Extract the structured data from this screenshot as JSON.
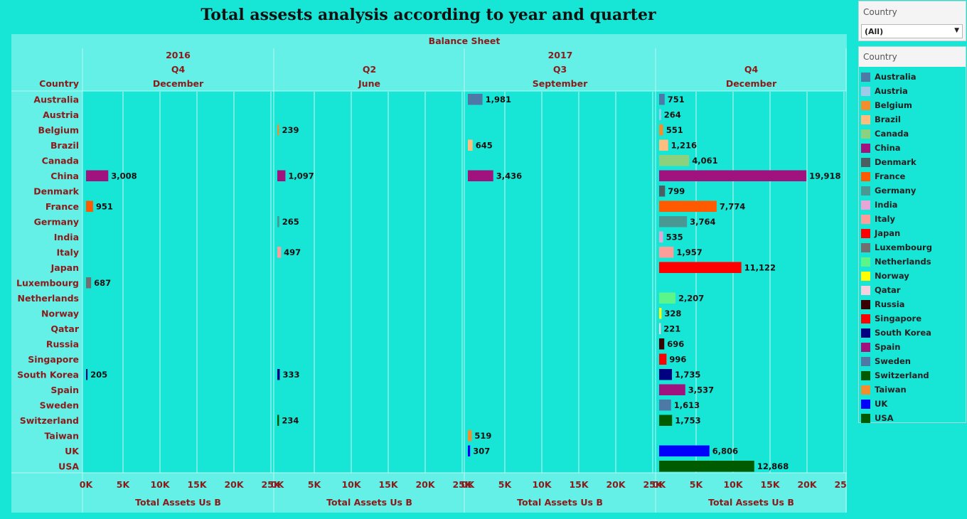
{
  "title": "Total assests analysis according to year and quarter",
  "filter": {
    "title": "Country",
    "selected": "(All)"
  },
  "legend": {
    "title": "Country",
    "items": [
      {
        "label": "Australia",
        "color": "#4e79a7"
      },
      {
        "label": "Austria",
        "color": "#a0cbe8"
      },
      {
        "label": "Belgium",
        "color": "#f28e2b"
      },
      {
        "label": "Brazil",
        "color": "#ffbe7d"
      },
      {
        "label": "Canada",
        "color": "#8cd17d"
      },
      {
        "label": "China",
        "color": "#a0127e"
      },
      {
        "label": "Denmark",
        "color": "#4b5f62"
      },
      {
        "label": "France",
        "color": "#ff5a00"
      },
      {
        "label": "Germany",
        "color": "#499894"
      },
      {
        "label": "India",
        "color": "#e8a6d8"
      },
      {
        "label": "Italy",
        "color": "#ff9d9a"
      },
      {
        "label": "Japan",
        "color": "#ff0000"
      },
      {
        "label": "Luxembourg",
        "color": "#707070"
      },
      {
        "label": "Netherlands",
        "color": "#5cf58a"
      },
      {
        "label": "Norway",
        "color": "#ffff00"
      },
      {
        "label": "Qatar",
        "color": "#f5d0df"
      },
      {
        "label": "Russia",
        "color": "#3d0000"
      },
      {
        "label": "Singapore",
        "color": "#ff0000"
      },
      {
        "label": "South Korea",
        "color": "#000080"
      },
      {
        "label": "Spain",
        "color": "#a0127e"
      },
      {
        "label": "Sweden",
        "color": "#4e79a7"
      },
      {
        "label": "Switzerland",
        "color": "#005a00"
      },
      {
        "label": "Taiwan",
        "color": "#f28e2b"
      },
      {
        "label": "UK",
        "color": "#0000ff"
      },
      {
        "label": "USA",
        "color": "#005a00"
      }
    ]
  },
  "chart_data": {
    "type": "bar",
    "orientation": "horizontal",
    "super_header": "Balance Sheet",
    "row_header": "Country",
    "categories": [
      "Australia",
      "Austria",
      "Belgium",
      "Brazil",
      "Canada",
      "China",
      "Denmark",
      "France",
      "Germany",
      "India",
      "Italy",
      "Japan",
      "Luxembourg",
      "Netherlands",
      "Norway",
      "Qatar",
      "Russia",
      "Singapore",
      "South Korea",
      "Spain",
      "Sweden",
      "Switzerland",
      "Taiwan",
      "UK",
      "USA"
    ],
    "years": [
      {
        "label": "2016",
        "span": 1
      },
      {
        "label": "2017",
        "span": 3
      }
    ],
    "panels": [
      {
        "year": "2016",
        "quarter": "Q4",
        "month": "December",
        "values": [
          null,
          null,
          null,
          null,
          null,
          3008,
          null,
          951,
          null,
          null,
          null,
          null,
          687,
          null,
          null,
          null,
          null,
          null,
          205,
          null,
          null,
          null,
          null,
          null,
          null
        ],
        "labels": [
          null,
          null,
          null,
          null,
          null,
          "3,008",
          null,
          "951",
          null,
          null,
          null,
          null,
          "687",
          null,
          null,
          null,
          null,
          null,
          "205",
          null,
          null,
          null,
          null,
          null,
          null
        ]
      },
      {
        "year": "2017",
        "quarter": "Q2",
        "month": "June",
        "values": [
          null,
          null,
          239,
          null,
          null,
          1097,
          null,
          null,
          265,
          null,
          497,
          null,
          null,
          null,
          null,
          null,
          null,
          null,
          333,
          null,
          null,
          234,
          null,
          null,
          null
        ],
        "labels": [
          null,
          null,
          "239",
          null,
          null,
          "1,097",
          null,
          null,
          "265",
          null,
          "497",
          null,
          null,
          null,
          null,
          null,
          null,
          null,
          "333",
          null,
          null,
          "234",
          null,
          null,
          null
        ]
      },
      {
        "year": "2017",
        "quarter": "Q3",
        "month": "September",
        "values": [
          1981,
          null,
          null,
          645,
          null,
          3436,
          null,
          null,
          null,
          null,
          null,
          null,
          null,
          null,
          null,
          null,
          null,
          null,
          null,
          null,
          null,
          null,
          519,
          307,
          null
        ],
        "labels": [
          "1,981",
          null,
          null,
          "645",
          null,
          "3,436",
          null,
          null,
          null,
          null,
          null,
          null,
          null,
          null,
          null,
          null,
          null,
          null,
          null,
          null,
          null,
          null,
          "519",
          "307",
          null
        ]
      },
      {
        "year": "2017",
        "quarter": "Q4",
        "month": "December",
        "values": [
          751,
          264,
          551,
          1216,
          4061,
          19918,
          799,
          7774,
          3764,
          535,
          1957,
          11122,
          null,
          2207,
          328,
          221,
          696,
          996,
          1735,
          3537,
          1613,
          1753,
          null,
          6806,
          12868
        ],
        "labels": [
          "751",
          "264",
          "551",
          "1,216",
          "4,061",
          "19,918",
          "799",
          "7,774",
          "3,764",
          "535",
          "1,957",
          "11,122",
          null,
          "2,207",
          "328",
          "221",
          "696",
          "996",
          "1,735",
          "3,537",
          "1,613",
          "1,753",
          null,
          "6,806",
          "12,868"
        ]
      }
    ],
    "xlim": [
      0,
      25000
    ],
    "ticks": [
      0,
      5000,
      10000,
      15000,
      20000,
      25000
    ],
    "tick_labels": [
      "0K",
      "5K",
      "10K",
      "15K",
      "20K",
      "25K"
    ],
    "xlabel": "Total Assets Us B",
    "grid": true
  }
}
